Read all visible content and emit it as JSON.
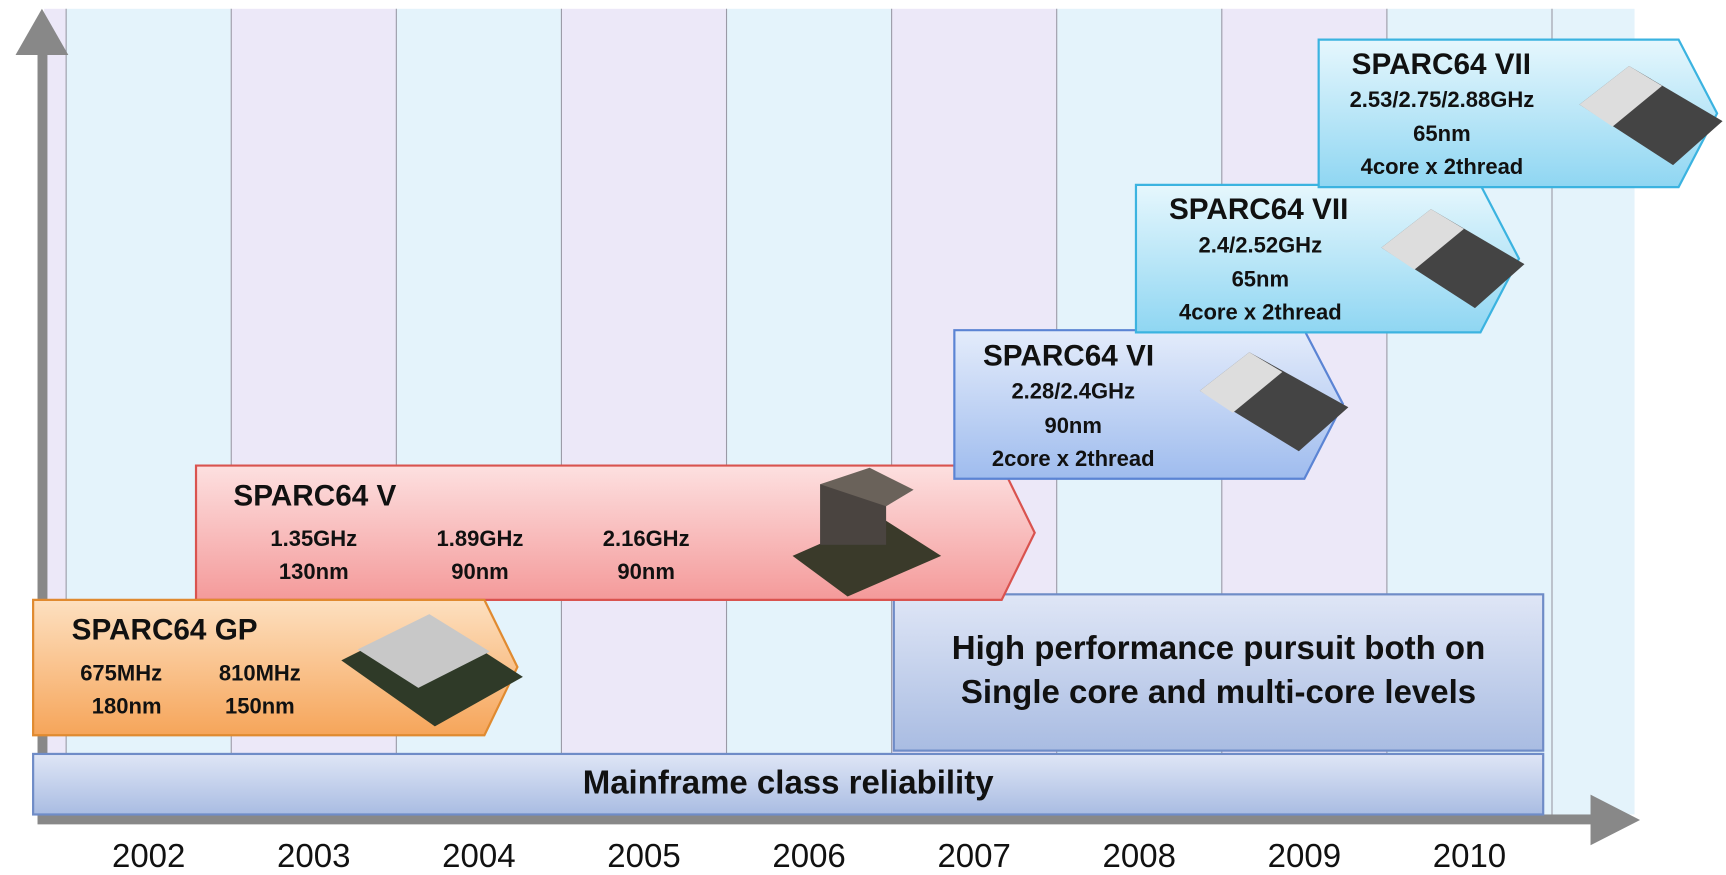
{
  "years": [
    "2002",
    "2003",
    "2004",
    "2005",
    "2006",
    "2007",
    "2008",
    "2009",
    "2010"
  ],
  "processors": [
    {
      "name": "SPARC64 GP",
      "columns": [
        [
          "675MHz",
          "180nm"
        ],
        [
          "810MHz",
          "150nm"
        ]
      ]
    },
    {
      "name": "SPARC64 V",
      "columns": [
        [
          "1.35GHz",
          "130nm"
        ],
        [
          "1.89GHz",
          "90nm"
        ],
        [
          "2.16GHz",
          "90nm"
        ]
      ]
    },
    {
      "name": "SPARC64 VI",
      "lines": [
        "2.28/2.4GHz",
        "90nm",
        "2core x 2thread"
      ]
    },
    {
      "name": "SPARC64 VII",
      "lines": [
        "2.4/2.52GHz",
        "65nm",
        "4core x 2thread"
      ]
    },
    {
      "name": "SPARC64 VII",
      "lines": [
        "2.53/2.75/2.88GHz",
        "65nm",
        "4core x 2thread"
      ]
    }
  ],
  "performance_banner": [
    "High performance pursuit both on",
    "Single core and multi-core levels"
  ],
  "reliability_banner": "Mainframe class reliability"
}
